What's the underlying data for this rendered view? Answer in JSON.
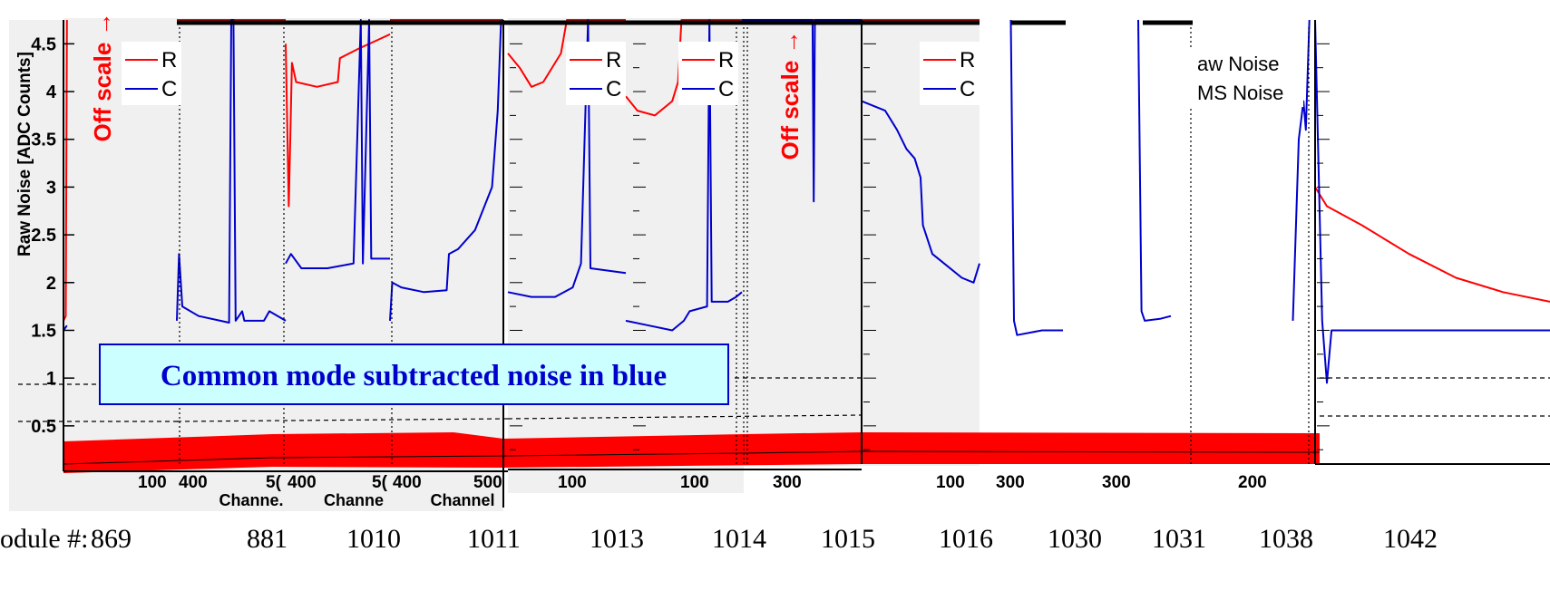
{
  "chart_data": {
    "type": "line",
    "title": "",
    "ylabel": "Raw Noise [ADC Counts]",
    "ylim": [
      0.1,
      4.75
    ],
    "yticks": [
      "0.5",
      "1",
      "1.5",
      "2",
      "2.5",
      "3",
      "3.5",
      "4",
      "4.5"
    ],
    "off_scale_label": "Off scale →",
    "annotation": "Common mode subtracted noise in blue",
    "module_prefix": "odule #:",
    "legend_fragments": {
      "raw": "R",
      "cm": "C",
      "raw_full": "aw Noise",
      "cm_full": "MS Noise"
    },
    "series_colors": {
      "raw": "#ff0000",
      "cm": "#0000cc",
      "band": "#ff0000"
    },
    "panels": [
      {
        "module": "869",
        "xtick_labels": [
          "100"
        ],
        "xlabel": "",
        "raw": [
          [
            0.0,
            1.6
          ],
          [
            0.02,
            1.65
          ],
          [
            0.03,
            4.75
          ]
        ],
        "cm": [
          [
            0.0,
            1.5
          ],
          [
            0.03,
            1.55
          ]
        ]
      },
      {
        "module": "881",
        "xtick_labels": [
          "400",
          "5("
        ],
        "xlabel": "Channe.",
        "raw": [
          [
            0.0,
            4.75
          ],
          [
            1.0,
            4.75
          ]
        ],
        "cm": [
          [
            0.0,
            1.6
          ],
          [
            0.02,
            2.3
          ],
          [
            0.05,
            1.75
          ],
          [
            0.2,
            1.65
          ],
          [
            0.4,
            1.6
          ],
          [
            0.48,
            1.58
          ],
          [
            0.5,
            4.75
          ],
          [
            0.52,
            4.75
          ],
          [
            0.54,
            1.6
          ],
          [
            0.6,
            1.7
          ],
          [
            0.62,
            1.6
          ],
          [
            0.8,
            1.6
          ],
          [
            0.85,
            1.7
          ],
          [
            1.0,
            1.6
          ]
        ]
      },
      {
        "module": "1010",
        "xtick_labels": [
          "400",
          "5("
        ],
        "xlabel": "Channe",
        "raw": [
          [
            0.0,
            4.5
          ],
          [
            0.03,
            2.8
          ],
          [
            0.06,
            4.3
          ],
          [
            0.1,
            4.1
          ],
          [
            0.3,
            4.05
          ],
          [
            0.5,
            4.1
          ],
          [
            0.52,
            4.35
          ],
          [
            0.7,
            4.45
          ],
          [
            0.9,
            4.55
          ],
          [
            1.0,
            4.6
          ]
        ],
        "cm": [
          [
            0.0,
            2.2
          ],
          [
            0.05,
            2.3
          ],
          [
            0.15,
            2.15
          ],
          [
            0.4,
            2.15
          ],
          [
            0.65,
            2.2
          ],
          [
            0.72,
            4.75
          ],
          [
            0.74,
            2.2
          ],
          [
            0.8,
            4.75
          ],
          [
            0.82,
            2.25
          ],
          [
            1.0,
            2.25
          ]
        ]
      },
      {
        "module": "1011",
        "xtick_labels": [
          "400",
          "500"
        ],
        "xlabel": "Channel",
        "raw": [
          [
            0.0,
            4.75
          ],
          [
            1.0,
            4.75
          ]
        ],
        "cm": [
          [
            0.0,
            1.6
          ],
          [
            0.02,
            2.0
          ],
          [
            0.1,
            1.95
          ],
          [
            0.3,
            1.9
          ],
          [
            0.5,
            1.92
          ],
          [
            0.52,
            2.3
          ],
          [
            0.6,
            2.35
          ],
          [
            0.75,
            2.55
          ],
          [
            0.9,
            3.0
          ],
          [
            0.95,
            3.8
          ],
          [
            0.98,
            4.75
          ]
        ]
      },
      {
        "module": "1013",
        "xtick_labels": [
          "100"
        ],
        "xlabel": "",
        "raw": [
          [
            0.0,
            4.4
          ],
          [
            0.1,
            4.25
          ],
          [
            0.2,
            4.05
          ],
          [
            0.3,
            4.1
          ],
          [
            0.45,
            4.4
          ],
          [
            0.5,
            4.75
          ],
          [
            1.0,
            4.75
          ]
        ],
        "cm": [
          [
            0.0,
            1.9
          ],
          [
            0.2,
            1.85
          ],
          [
            0.4,
            1.85
          ],
          [
            0.55,
            1.95
          ],
          [
            0.62,
            2.2
          ],
          [
            0.68,
            4.75
          ],
          [
            0.7,
            2.15
          ],
          [
            1.0,
            2.1
          ]
        ]
      },
      {
        "module": "1014",
        "xtick_labels": [
          "100"
        ],
        "xlabel": "",
        "raw": [
          [
            0.0,
            3.95
          ],
          [
            0.1,
            3.8
          ],
          [
            0.25,
            3.75
          ],
          [
            0.4,
            3.9
          ],
          [
            0.45,
            4.1
          ],
          [
            0.48,
            4.75
          ],
          [
            1.0,
            4.75
          ]
        ],
        "cm": [
          [
            0.0,
            1.6
          ],
          [
            0.2,
            1.55
          ],
          [
            0.4,
            1.5
          ],
          [
            0.5,
            1.6
          ],
          [
            0.55,
            1.7
          ],
          [
            0.7,
            1.75
          ],
          [
            0.72,
            4.75
          ],
          [
            0.74,
            1.8
          ],
          [
            0.88,
            1.8
          ],
          [
            0.95,
            1.85
          ],
          [
            1.0,
            1.9
          ]
        ]
      },
      {
        "module": "1015",
        "xtick_labels": [
          "300"
        ],
        "xlabel": "",
        "raw": [
          [
            0.0,
            4.75
          ],
          [
            1.0,
            4.75
          ]
        ],
        "cm": [
          [
            0.0,
            4.75
          ],
          [
            0.59,
            4.75
          ],
          [
            0.6,
            2.85
          ],
          [
            0.61,
            4.75
          ],
          [
            1.0,
            4.75
          ]
        ]
      },
      {
        "module": "1016",
        "xtick_labels": [
          "100"
        ],
        "xlabel": "",
        "raw": [
          [
            0.0,
            4.75
          ],
          [
            1.0,
            4.75
          ]
        ],
        "cm": [
          [
            0.0,
            3.9
          ],
          [
            0.2,
            3.8
          ],
          [
            0.3,
            3.6
          ],
          [
            0.38,
            3.4
          ],
          [
            0.45,
            3.3
          ],
          [
            0.5,
            3.1
          ],
          [
            0.52,
            2.6
          ],
          [
            0.6,
            2.3
          ],
          [
            0.7,
            2.2
          ],
          [
            0.85,
            2.05
          ],
          [
            0.95,
            2.0
          ],
          [
            1.0,
            2.2
          ]
        ]
      },
      {
        "module": "1030",
        "xtick_labels": [
          "300"
        ],
        "xlabel": "",
        "raw": [],
        "cm": [
          [
            0.3,
            4.75
          ],
          [
            0.33,
            1.6
          ],
          [
            0.36,
            1.45
          ],
          [
            0.6,
            1.5
          ],
          [
            0.8,
            1.5
          ]
        ]
      },
      {
        "module": "1031",
        "xtick_labels": [
          "300"
        ],
        "xlabel": "",
        "raw": [],
        "cm": [
          [
            0.5,
            4.75
          ],
          [
            0.53,
            1.7
          ],
          [
            0.56,
            1.6
          ],
          [
            0.7,
            1.62
          ],
          [
            0.8,
            1.65
          ]
        ]
      },
      {
        "module": "1038",
        "xtick_labels": [
          "200"
        ],
        "xlabel": "",
        "raw": [],
        "cm": [
          [
            0.85,
            1.6
          ],
          [
            0.9,
            3.5
          ],
          [
            0.94,
            3.9
          ],
          [
            0.96,
            3.6
          ],
          [
            0.99,
            4.75
          ]
        ]
      },
      {
        "module": "1042",
        "xtick_labels": [],
        "xlabel": "",
        "raw": [
          [
            0.0,
            3.0
          ],
          [
            0.05,
            2.8
          ],
          [
            0.2,
            2.6
          ],
          [
            0.4,
            2.3
          ],
          [
            0.6,
            2.05
          ],
          [
            0.8,
            1.9
          ],
          [
            1.0,
            1.8
          ]
        ],
        "cm": [
          [
            0.0,
            4.75
          ],
          [
            0.03,
            1.6
          ],
          [
            0.05,
            0.95
          ],
          [
            0.07,
            1.5
          ],
          [
            0.4,
            1.5
          ],
          [
            0.7,
            1.5
          ],
          [
            1.0,
            1.5
          ]
        ]
      }
    ]
  }
}
